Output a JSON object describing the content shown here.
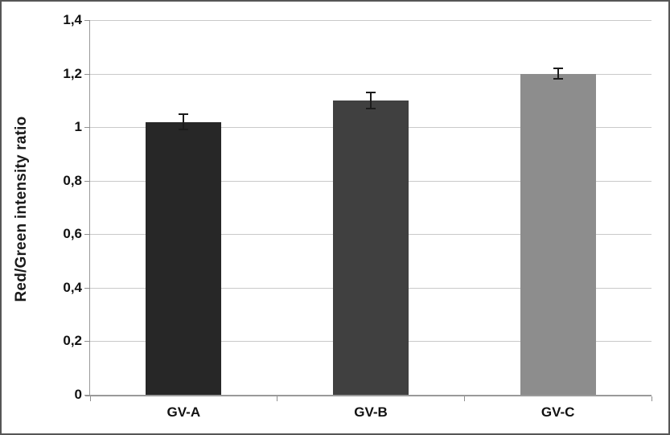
{
  "chart_data": {
    "type": "bar",
    "title": "",
    "xlabel": "",
    "ylabel": "Red/Green intensity ratio",
    "categories": [
      "GV-A",
      "GV-B",
      "GV-C"
    ],
    "values": [
      1.02,
      1.1,
      1.2
    ],
    "error_bars": [
      0.03,
      0.03,
      0.02
    ],
    "bar_colors": [
      "#272727",
      "#404040",
      "#8d8d8d"
    ],
    "ylim": [
      0,
      1.4
    ],
    "ytick_step": 0.2,
    "ytick_labels_bottom_to_top": [
      "0",
      "0,2",
      "0,4",
      "0,6",
      "0,8",
      "1",
      "1,2",
      "1,4"
    ],
    "decimal_separator": ",",
    "grid": "horizontal",
    "legend_position": "none",
    "colors": {
      "background": "#ffffff",
      "gridline": "#c9c9c9",
      "axis": "#9a9a9a",
      "tick": "#8f8f8f",
      "error_bar": "#1c1c1c",
      "text": "#111111",
      "figure_border": "#565656"
    }
  }
}
